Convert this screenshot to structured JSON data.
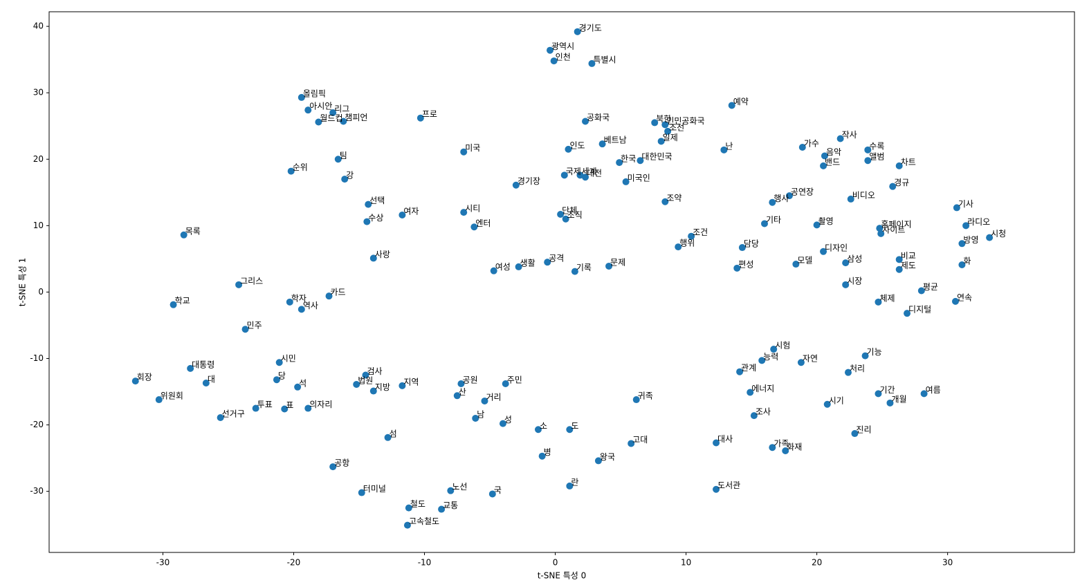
{
  "chart_data": {
    "type": "scatter",
    "xlabel": "t-SNE 특성 0",
    "ylabel": "t-SNE 특성 1",
    "color": "#1f77b4",
    "xlim": [
      -38.7,
      39.7
    ],
    "ylim": [
      -39.2,
      42.2
    ],
    "xticks": [
      -30,
      -20,
      -10,
      0,
      10,
      20,
      30
    ],
    "yticks": [
      -30,
      -20,
      -10,
      0,
      10,
      20,
      30,
      40
    ],
    "labels": [
      "경기도",
      "광역시",
      "특별시",
      "인천",
      "올림픽",
      "아시안",
      "리그",
      "챔피언",
      "월드컵",
      "프로",
      "공화국",
      "인민공화국",
      "북한",
      "조선",
      "일제",
      "예약",
      "난",
      "가수",
      "작사",
      "음악",
      "밴드",
      "수록",
      "앨범",
      "차트",
      "경규",
      "베트남",
      "대한민국",
      "한국",
      "미국인",
      "국제",
      "세계",
      "대전",
      "인도",
      "미국",
      "팀",
      "강",
      "순위",
      "경기장",
      "선택",
      "수상",
      "시티",
      "엔터",
      "단체",
      "조직",
      "조약",
      "행사",
      "공연장",
      "비디오",
      "기사",
      "라디오",
      "방영",
      "시청",
      "홈페이지",
      "사이트",
      "기타",
      "촬영",
      "디자인",
      "모델",
      "삼성",
      "비교",
      "제도",
      "화",
      "평균",
      "연속",
      "디지털",
      "여름",
      "기간",
      "개월",
      "시기",
      "처리",
      "기능",
      "체제",
      "시장",
      "에너지",
      "조사",
      "시험",
      "능력",
      "자연",
      "관계",
      "진리",
      "대사",
      "가족",
      "화재",
      "위원회",
      "회장",
      "대통령",
      "목록",
      "그리스",
      "학자",
      "역사",
      "카드",
      "학교",
      "투표",
      "표",
      "의자리",
      "선거구",
      "민주",
      "시민",
      "대",
      "당",
      "석",
      "공항",
      "터미널",
      "철도",
      "고속철도",
      "교통",
      "노선",
      "국",
      "란",
      "왕국",
      "고대",
      "귀족",
      "도서관",
      "거리",
      "섬",
      "남",
      "성",
      "소",
      "도",
      "병",
      "산",
      "검사",
      "법원",
      "지방",
      "지역",
      "공원",
      "주민",
      "여성",
      "생활",
      "공격",
      "기록",
      "문제",
      "행위",
      "조건",
      "담당",
      "편성",
      "사랑",
      "여자"
    ],
    "x": [
      1.7,
      -0.4,
      2.8,
      -0.1,
      -19.4,
      -18.9,
      -17,
      -16.2,
      -18.1,
      -10.3,
      2.3,
      8.4,
      7.6,
      8.6,
      8.1,
      13.5,
      12.9,
      18.9,
      21.8,
      20.6,
      20.5,
      23.9,
      23.9,
      26.3,
      25.8,
      3.6,
      6.5,
      4.9,
      5.4,
      0.7,
      1.9,
      2.3,
      1.0,
      -7,
      -16.6,
      -16.1,
      -20.2,
      -3,
      -14.3,
      -14.4,
      -7,
      -6.2,
      0.4,
      0.8,
      8.4,
      16.6,
      17.9,
      22.6,
      30.7,
      31.4,
      31.1,
      33.2,
      24.8,
      24.9,
      16,
      20,
      20.5,
      18.4,
      22.2,
      26.3,
      26.3,
      31.1,
      28,
      30.6,
      26.9,
      28.2,
      24.7,
      25.6,
      20.8,
      22.4,
      23.7,
      24.7,
      22.2,
      14.9,
      15.2,
      16.7,
      15.8,
      18.8,
      14.1,
      22.9,
      12.3,
      16.6,
      17.6,
      -30.3,
      -32.1,
      -27.9,
      -28.4,
      -24.2,
      -20.3,
      -19.4,
      -17.3,
      -29.2,
      -22.9,
      -20.7,
      -18.9,
      -25.6,
      -23.7,
      -21.1,
      -26.7,
      -21.3,
      -19.7,
      -17,
      -14.8,
      -11.2,
      -11.3,
      -8.7,
      -8,
      -4.8,
      1.1,
      3.3,
      5.8,
      6.2,
      12.3,
      -5.4,
      -12.8,
      -6.1,
      -4,
      -1.3,
      1.1,
      -1,
      -7.5,
      -14.5,
      -15.2,
      -13.9,
      -11.7,
      -7.2,
      -3.8,
      -4.7,
      -2.8,
      -0.6,
      1.5,
      4.1,
      9.4,
      10.4,
      14.3,
      13.9,
      -13.9,
      -11.7
    ],
    "values": [
      39.2,
      36.4,
      34.4,
      34.8,
      29.3,
      27.4,
      27,
      25.7,
      25.6,
      26.2,
      25.7,
      25.2,
      25.5,
      24.2,
      22.7,
      28.1,
      21.4,
      21.8,
      23.1,
      20.5,
      19,
      21.4,
      19.8,
      19,
      15.9,
      22.3,
      19.8,
      19.5,
      16.6,
      17.6,
      17.6,
      17.3,
      21.5,
      21.1,
      20,
      17,
      18.2,
      16.1,
      13.2,
      10.6,
      12,
      9.8,
      11.7,
      11,
      13.6,
      13.5,
      14.5,
      14,
      12.7,
      10,
      7.3,
      8.2,
      9.6,
      8.8,
      10.3,
      10.1,
      6.1,
      4.2,
      4.4,
      4.9,
      3.4,
      4.1,
      0.2,
      -1.4,
      -3.2,
      -15.3,
      -15.3,
      -16.7,
      -16.9,
      -12.1,
      -9.6,
      -1.5,
      1.1,
      -15.1,
      -18.6,
      -8.6,
      -10.3,
      -10.6,
      -12,
      -21.3,
      -22.7,
      -23.4,
      -23.9,
      -16.2,
      -13.4,
      -11.5,
      8.6,
      1.1,
      -1.5,
      -2.6,
      -0.6,
      -1.9,
      -17.5,
      -17.6,
      -17.5,
      -18.9,
      -5.6,
      -10.6,
      -13.7,
      -13.2,
      -14.3,
      -26.3,
      -30.2,
      -32.5,
      -35.1,
      -32.7,
      -29.9,
      -30.4,
      -29.2,
      -25.4,
      -22.8,
      -16.2,
      -29.7,
      -16.4,
      -21.9,
      -19,
      -19.8,
      -20.7,
      -20.7,
      -24.7,
      -15.6,
      -12.5,
      -13.9,
      -14.9,
      -14.1,
      -13.8,
      -13.8,
      3.2,
      3.8,
      4.5,
      3.1,
      3.9,
      6.8,
      8.4,
      6.7,
      3.6,
      5.1,
      11.6
    ]
  }
}
